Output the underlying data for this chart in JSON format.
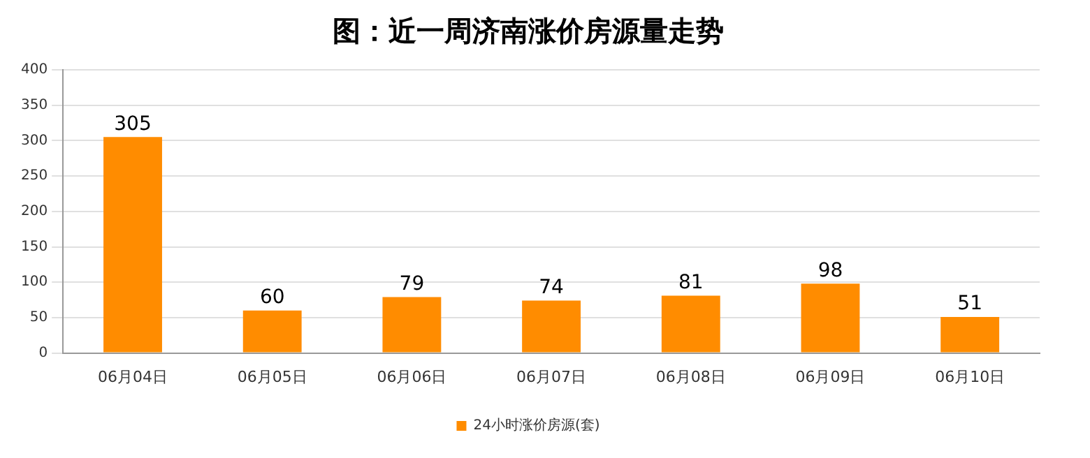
{
  "chart_data": {
    "type": "bar",
    "title": "图：近一周济南涨价房源量走势",
    "categories": [
      "06月04日",
      "06月05日",
      "06月06日",
      "06月07日",
      "06月08日",
      "06月09日",
      "06月10日"
    ],
    "series": [
      {
        "name": "24小时涨价房源(套)",
        "color": "#ff8c00",
        "values": [
          305,
          60,
          79,
          74,
          81,
          98,
          51
        ]
      }
    ],
    "ylim": [
      0,
      400
    ],
    "yticks": [
      0,
      50,
      100,
      150,
      200,
      250,
      300,
      350,
      400
    ],
    "grid": "y",
    "legend": "bottom",
    "data_labels": true
  }
}
